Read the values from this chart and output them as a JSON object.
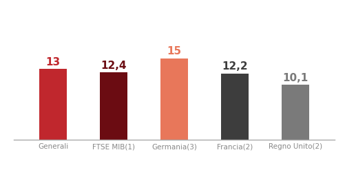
{
  "categories": [
    "Generali",
    "FTSE MIB(1)",
    "Germania(3)",
    "Francia(2)",
    "Regno Unito(2)"
  ],
  "values": [
    13,
    12.4,
    15,
    12.2,
    10.1
  ],
  "bar_colors": [
    "#c0272d",
    "#6b0c12",
    "#e8775a",
    "#3d3d3d",
    "#7a7a7a"
  ],
  "value_colors": [
    "#c0272d",
    "#6b0c12",
    "#e8775a",
    "#3d3d3d",
    "#7a7a7a"
  ],
  "value_labels": [
    "13",
    "12,4",
    "15",
    "12,2",
    "10,1"
  ],
  "background_color": "#ffffff",
  "ylim": [
    0,
    22
  ],
  "bar_width": 0.45,
  "label_fontsize": 7.5,
  "value_fontsize": 11
}
